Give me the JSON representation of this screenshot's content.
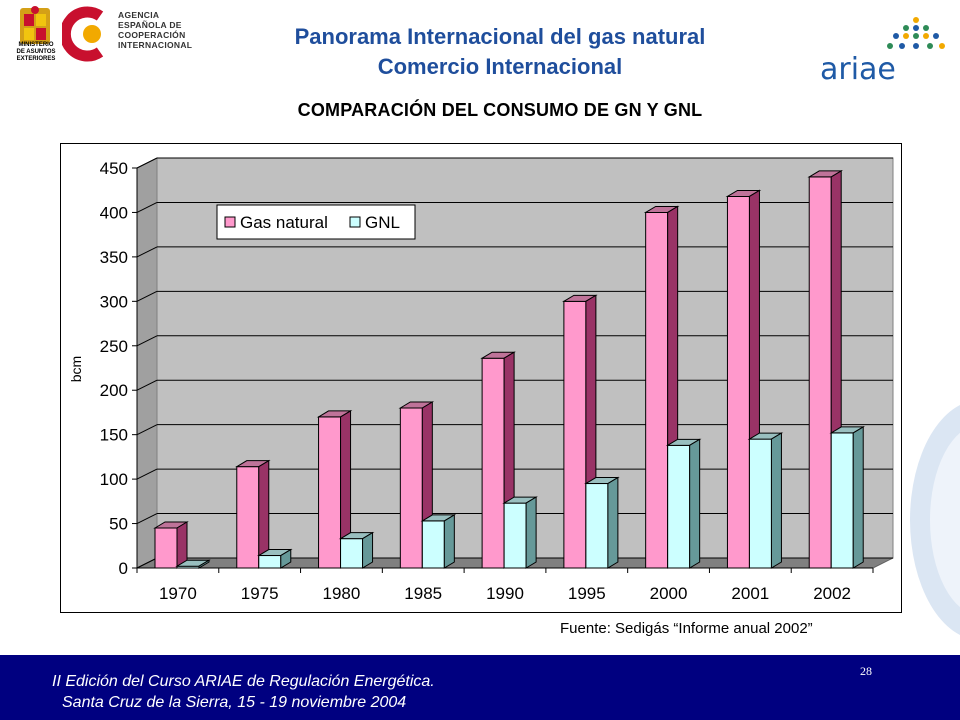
{
  "header": {
    "title_line1": "Panorama Internacional del gas natural",
    "title_line2": "Comercio Internacional",
    "agency_lines": [
      "AGENCIA",
      "ESPAÑOLA DE",
      "COOPERACIÓN",
      "INTERNACIONAL"
    ],
    "ministry_lines": [
      "MINISTERIO",
      "DE ASUNTOS",
      "EXTERIORES"
    ],
    "partner_logo": "ariae"
  },
  "subtitle": "COMPARACIÓN DEL CONSUMO DE GN Y GNL",
  "source": "Fuente: Sedigás “Informe anual 2002”",
  "footer": {
    "line1": "II Edición del Curso ARIAE de Regulación Energética.",
    "line2": "Santa Cruz de la Sierra, 15 - 19 noviembre 2004",
    "page_number": "28",
    "background": "#000080"
  },
  "chart_data": {
    "type": "bar",
    "categories": [
      "1970",
      "1975",
      "1980",
      "1985",
      "1990",
      "1995",
      "2000",
      "2001",
      "2002"
    ],
    "series": [
      {
        "name": "Gas natural",
        "color": "#ff99cc",
        "values": [
          45,
          114,
          170,
          180,
          236,
          300,
          400,
          418,
          440
        ]
      },
      {
        "name": "GNL",
        "color": "#ccffff",
        "values": [
          2,
          14,
          33,
          53,
          73,
          95,
          138,
          145,
          152
        ]
      }
    ],
    "ylabel": "bcm",
    "xlabel": "",
    "ylim": [
      0,
      450
    ],
    "yticks": [
      "0",
      "50",
      "100",
      "150",
      "200",
      "250",
      "300",
      "350",
      "400",
      "450"
    ],
    "grid": true,
    "legend_position": "top-left",
    "plot_background": "#c0c0c0"
  }
}
